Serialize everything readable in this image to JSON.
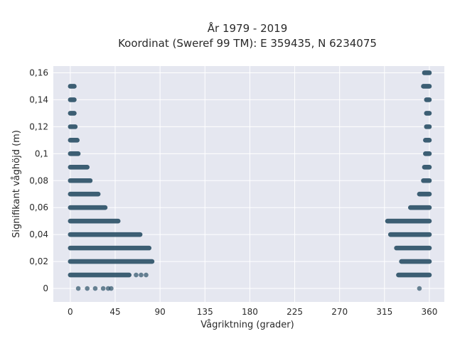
{
  "chart_data": {
    "type": "scatter",
    "title_lines": [
      "År 1979 - 2019",
      "Koordinat (Sweref 99 TM): E 359435, N 6234075"
    ],
    "xlabel": "Vågriktning (grader)",
    "ylabel": "Signifikant våghöjd (m)",
    "xlim": [
      -17,
      375
    ],
    "ylim": [
      -0.01,
      0.165
    ],
    "xticks": [
      0,
      45,
      90,
      135,
      180,
      225,
      270,
      315,
      360
    ],
    "xtick_labels": [
      "0",
      "45",
      "90",
      "135",
      "180",
      "225",
      "270",
      "315",
      "360"
    ],
    "yticks": [
      0,
      0.02,
      0.04,
      0.06,
      0.08,
      0.1,
      0.12,
      0.14,
      0.16
    ],
    "ytick_labels": [
      "0",
      "0,02",
      "0,04",
      "0,06",
      "0,08",
      "0,1",
      "0,12",
      "0,14",
      "0,16"
    ],
    "grid": true,
    "background": "#e5e7f0",
    "point_color": "#2e5268",
    "bands": [
      {
        "y": 0.16,
        "left_max": null,
        "right_min": 355
      },
      {
        "y": 0.15,
        "left_max": 4,
        "right_min": 354
      },
      {
        "y": 0.14,
        "left_max": 4,
        "right_min": 357
      },
      {
        "y": 0.13,
        "left_max": 4,
        "right_min": 357
      },
      {
        "y": 0.12,
        "left_max": 5,
        "right_min": 357
      },
      {
        "y": 0.11,
        "left_max": 7,
        "right_min": 356
      },
      {
        "y": 0.1,
        "left_max": 8,
        "right_min": 356
      },
      {
        "y": 0.09,
        "left_max": 17,
        "right_min": 355
      },
      {
        "y": 0.08,
        "left_max": 20,
        "right_min": 354
      },
      {
        "y": 0.07,
        "left_max": 28,
        "right_min": 350
      },
      {
        "y": 0.06,
        "left_max": 35,
        "right_min": 341
      },
      {
        "y": 0.05,
        "left_max": 48,
        "right_min": 318
      },
      {
        "y": 0.04,
        "left_max": 70,
        "right_min": 321
      },
      {
        "y": 0.03,
        "left_max": 79,
        "right_min": 327
      },
      {
        "y": 0.02,
        "left_max": 82,
        "right_min": 332
      },
      {
        "y": 0.01,
        "left_max": 59,
        "right_min": 329
      }
    ],
    "sparse_points": [
      {
        "x": 66,
        "y": 0.01
      },
      {
        "x": 71,
        "y": 0.01
      },
      {
        "x": 76,
        "y": 0.01
      },
      {
        "x": 8,
        "y": 0
      },
      {
        "x": 17,
        "y": 0
      },
      {
        "x": 25,
        "y": 0
      },
      {
        "x": 33,
        "y": 0
      },
      {
        "x": 38,
        "y": 0
      },
      {
        "x": 41,
        "y": 0
      },
      {
        "x": 350,
        "y": 0
      }
    ]
  }
}
